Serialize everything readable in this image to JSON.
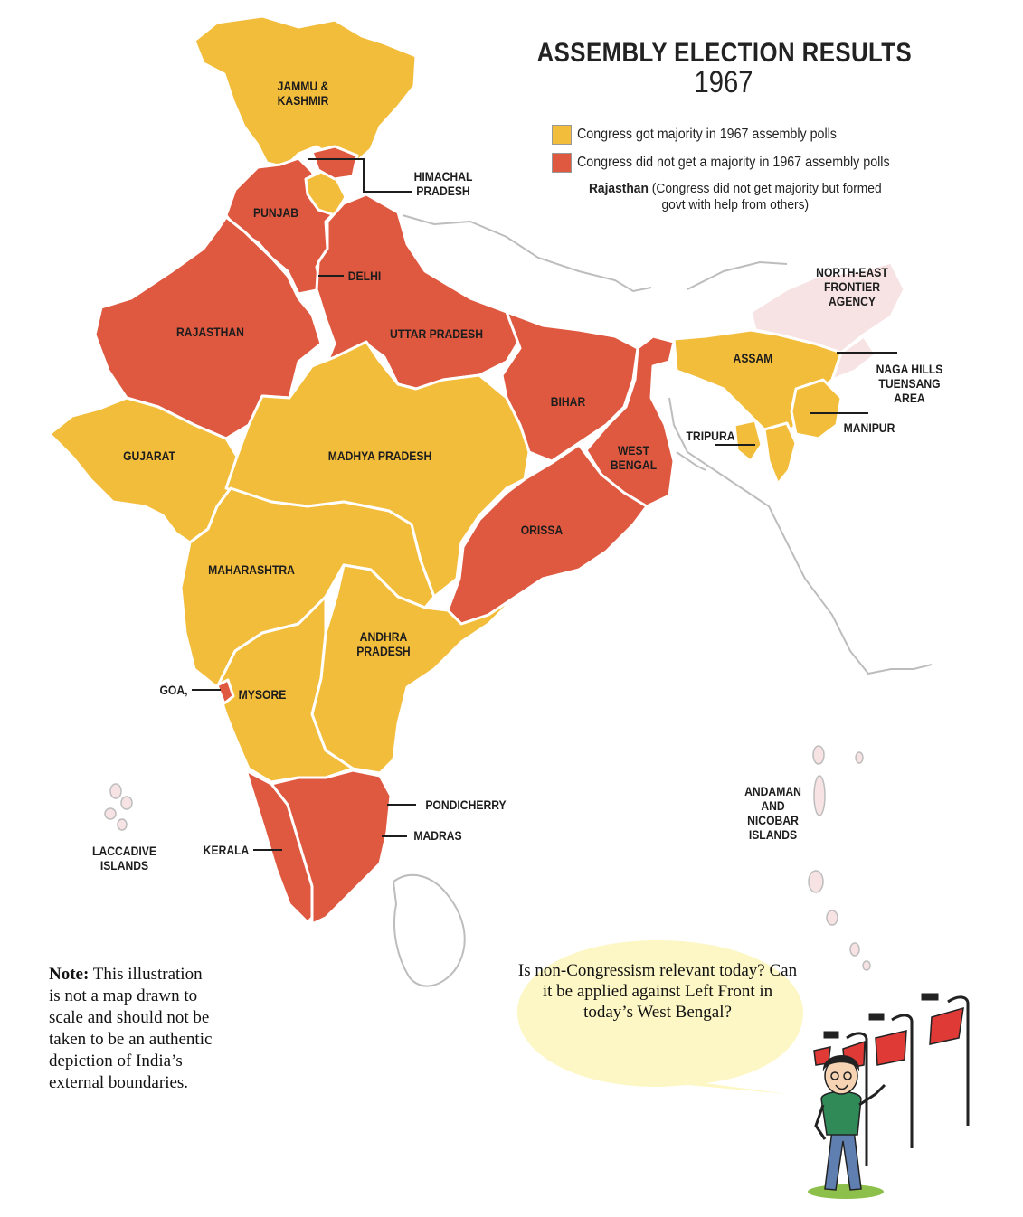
{
  "title": "ASSEMBLY ELECTION RESULTS",
  "year": "1967",
  "colors": {
    "congress_majority": "#f3bd3c",
    "no_majority": "#df5940",
    "nefa": "#f7e3e3",
    "border": "#ffffff",
    "neighbour_outline": "#bdbdbd"
  },
  "legend": {
    "majority": "Congress got majority in 1967 assembly polls",
    "no_majority": "Congress did not get a majority in 1967 assembly polls",
    "rajasthan_bold": "Rajasthan",
    "rajasthan_note": "(Congress did not get majority but formed govt with help from others)"
  },
  "labels": {
    "jk": "JAMMU &\nKASHMIR",
    "hp": "HIMACHAL\nPRADESH",
    "punjab": "PUNJAB",
    "delhi": "DELHI",
    "rajasthan": "RAJASTHAN",
    "up": "UTTAR PRADESH",
    "nefa": "NORTH-EAST\nFRONTIER\nAGENCY",
    "assam": "ASSAM",
    "naga": "NAGA HILLS\nTUENSANG\nAREA",
    "bihar": "BIHAR",
    "manipur": "MANIPUR",
    "tripura": "TRIPURA",
    "wb": "WEST\nBENGAL",
    "gujarat": "GUJARAT",
    "mp": "MADHYA PRADESH",
    "orissa": "ORISSA",
    "maharashtra": "MAHARASHTRA",
    "ap": "ANDHRA\nPRADESH",
    "goa": "GOA,",
    "mysore": "MYSORE",
    "pondicherry": "PONDICHERRY",
    "madras": "MADRAS",
    "kerala": "KERALA",
    "laccadive": "LACCADIVE\nISLANDS",
    "andaman": "ANDAMAN\nAND\nNICOBAR\nISLANDS"
  },
  "disclaimer": {
    "bold": "Note:",
    "text": " This illustration is not a map drawn to scale and should not be taken to be an authentic depiction of India’s external boundaries."
  },
  "bubble": "Is non-Congressism relevant today? Can it be applied against Left Front in today’s West Bengal?"
}
